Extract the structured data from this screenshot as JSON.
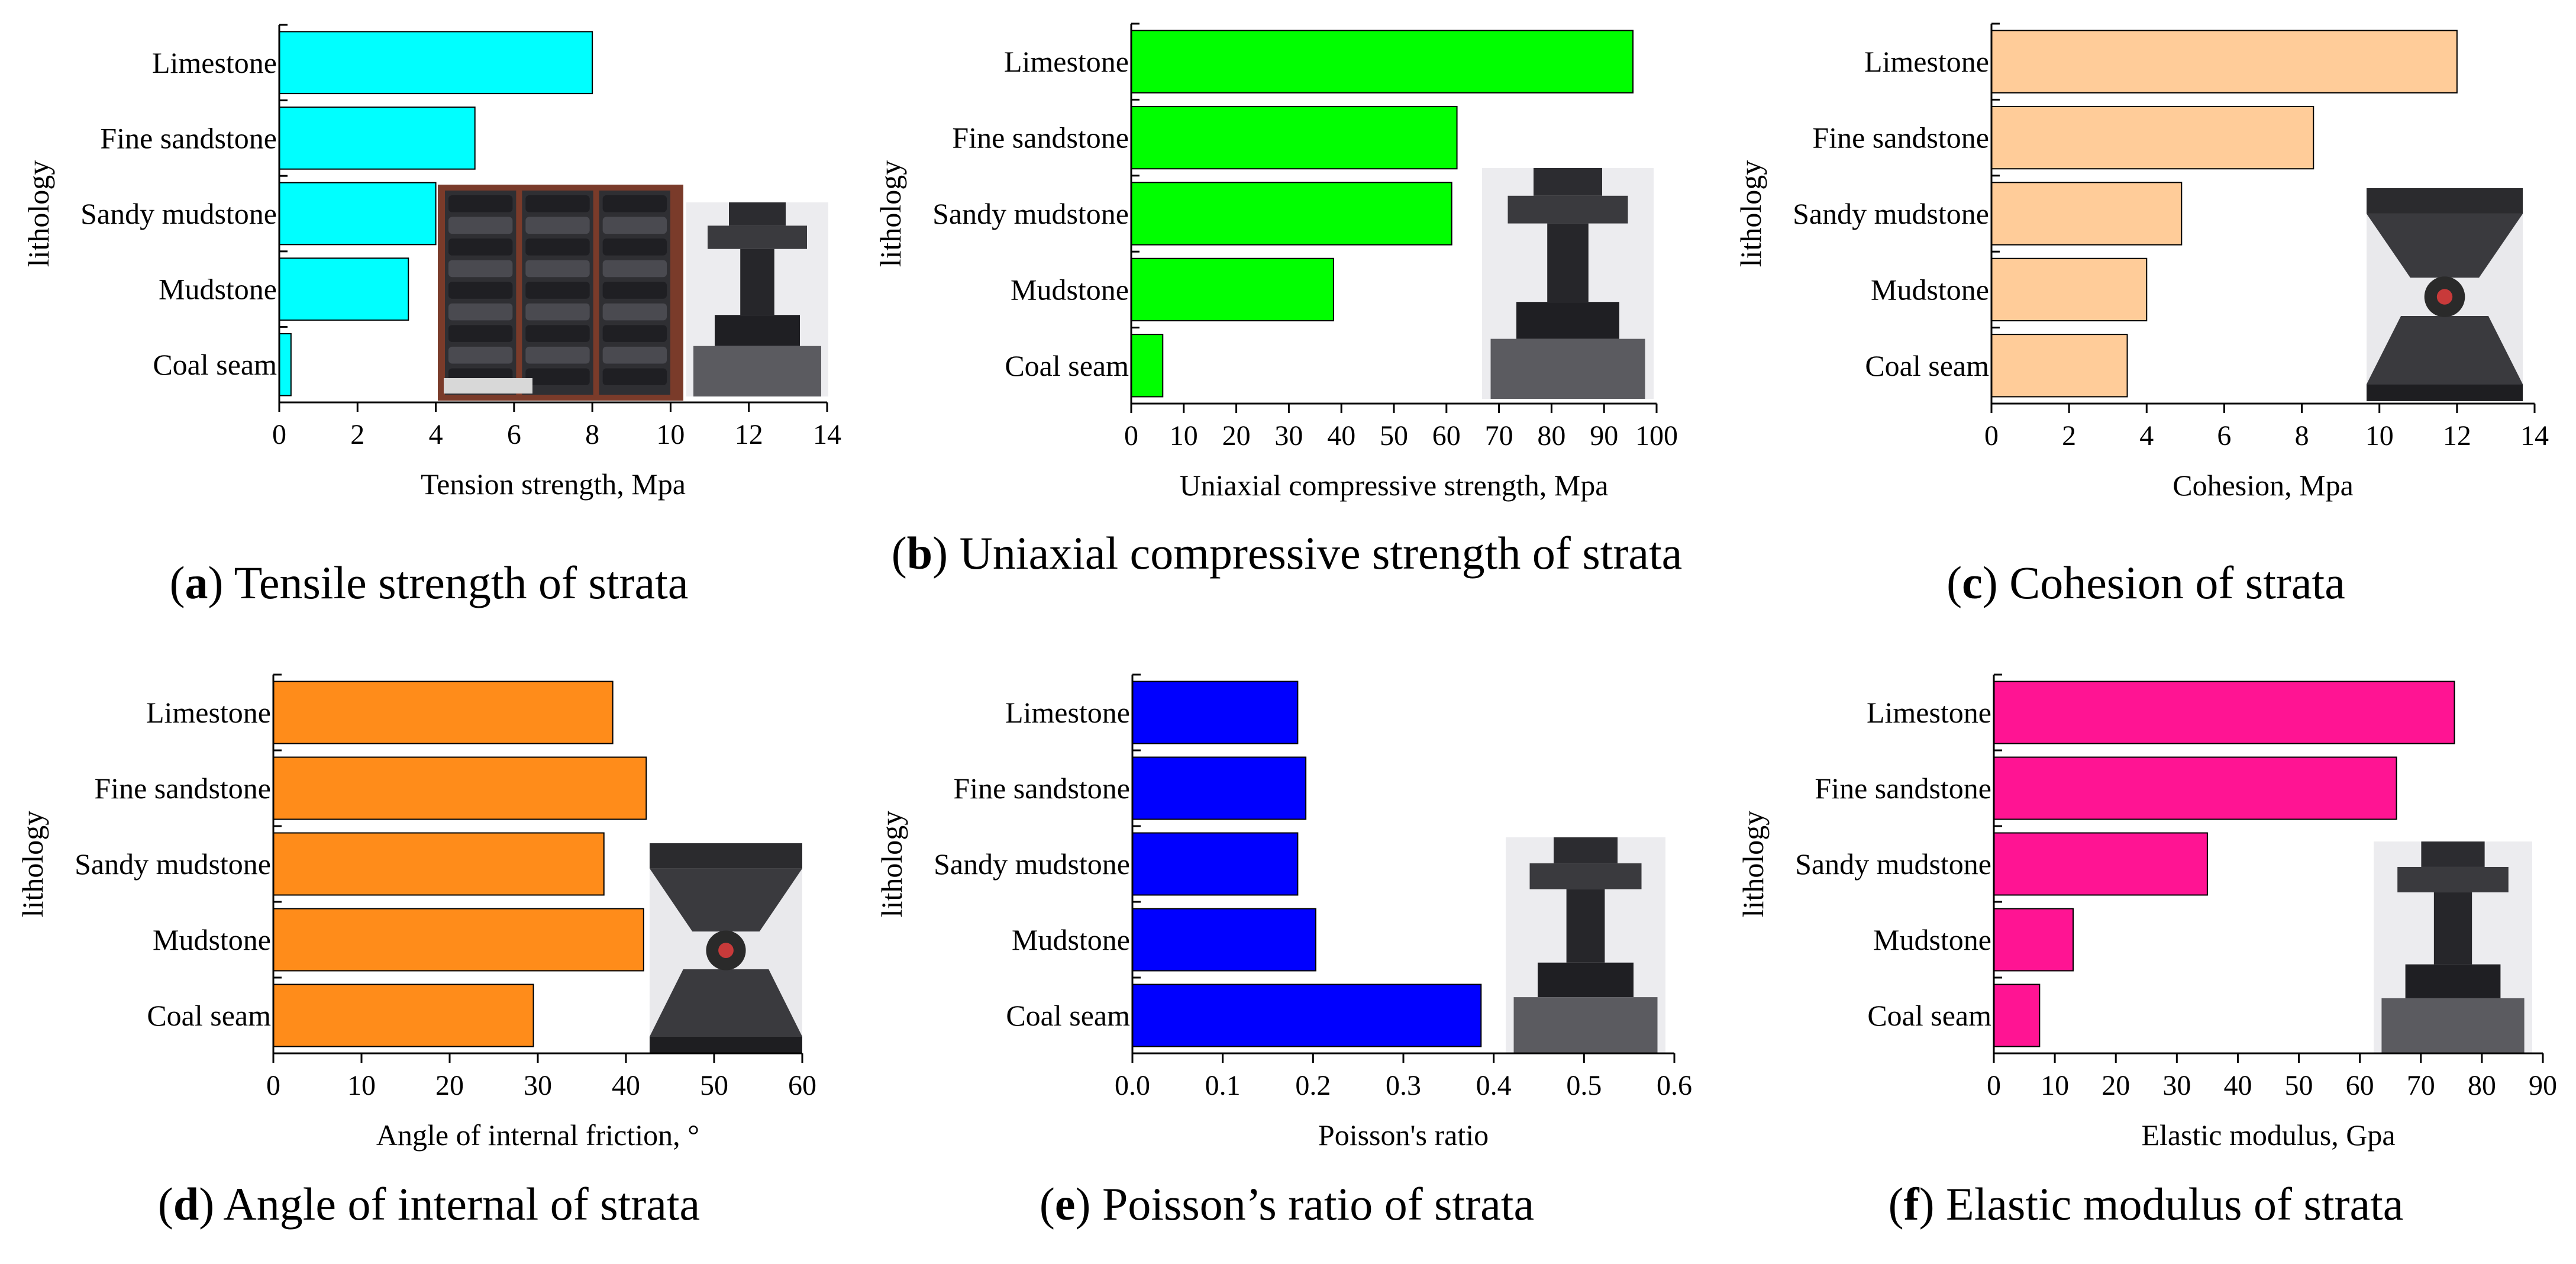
{
  "chart_data": [
    {
      "type": "bar",
      "orientation": "horizontal",
      "panel_letter": "a",
      "caption": "Tensile strength of strata",
      "xlabel": "Tension strength, Mpa",
      "ylabel": "lithology",
      "categories": [
        "Limestone",
        "Fine sandstone",
        "Sandy mudstone",
        "Mudstone",
        "Coal seam"
      ],
      "values": [
        8.0,
        5.0,
        4.0,
        3.3,
        0.3
      ],
      "xlim": [
        0,
        14
      ],
      "xticks": [
        "0",
        "2",
        "4",
        "6",
        "8",
        "10",
        "12",
        "14"
      ],
      "bar_color": "#00ffff",
      "photo": "specimen-photo"
    },
    {
      "type": "bar",
      "orientation": "horizontal",
      "panel_letter": "b",
      "caption": "Uniaxial compressive strength of strata",
      "xlabel": "Uniaxial compressive strength, Mpa",
      "ylabel": "lithology",
      "categories": [
        "Limestone",
        "Fine sandstone",
        "Sandy mudstone",
        "Mudstone",
        "Coal seam"
      ],
      "values": [
        95.5,
        62,
        61,
        38.5,
        6
      ],
      "xlim": [
        0,
        100
      ],
      "xticks": [
        "0",
        "10",
        "20",
        "30",
        "40",
        "50",
        "60",
        "70",
        "80",
        "90",
        "100"
      ],
      "bar_color": "#00ff00",
      "photo": "specimen-photo"
    },
    {
      "type": "bar",
      "orientation": "horizontal",
      "panel_letter": "c",
      "caption": "Cohesion of strata",
      "xlabel": "Cohesion, Mpa",
      "ylabel": "lithology",
      "categories": [
        "Limestone",
        "Fine sandstone",
        "Sandy mudstone",
        "Mudstone",
        "Coal seam"
      ],
      "values": [
        12.0,
        8.3,
        4.9,
        4.0,
        3.5
      ],
      "xlim": [
        0,
        14
      ],
      "xticks": [
        "0",
        "2",
        "4",
        "6",
        "8",
        "10",
        "12",
        "14"
      ],
      "bar_color": "#ffcc99",
      "photo": "specimen-photo"
    },
    {
      "type": "bar",
      "orientation": "horizontal",
      "panel_letter": "d",
      "caption": "Angle of internal of strata",
      "xlabel": "Angle of internal friction, °",
      "ylabel": "lithology",
      "categories": [
        "Limestone",
        "Fine sandstone",
        "Sandy mudstone",
        "Mudstone",
        "Coal seam"
      ],
      "values": [
        38.5,
        42.3,
        37.5,
        42,
        29.5
      ],
      "xlim": [
        0,
        60
      ],
      "xticks": [
        "0",
        "10",
        "20",
        "30",
        "40",
        "50",
        "60"
      ],
      "bar_color": "#ff8c1a",
      "photo": "specimen-photo"
    },
    {
      "type": "bar",
      "orientation": "horizontal",
      "panel_letter": "e",
      "caption": "Poisson’s ratio of strata",
      "xlabel": "Poisson's ratio",
      "ylabel": "lithology",
      "categories": [
        "Limestone",
        "Fine sandstone",
        "Sandy mudstone",
        "Mudstone",
        "Coal seam"
      ],
      "values": [
        0.183,
        0.192,
        0.183,
        0.203,
        0.386
      ],
      "xlim": [
        0,
        0.6
      ],
      "xticks": [
        "0.0",
        "0.1",
        "0.2",
        "0.3",
        "0.4",
        "0.5",
        "0.6"
      ],
      "bar_color": "#0000ff",
      "photo": "specimen-photo"
    },
    {
      "type": "bar",
      "orientation": "horizontal",
      "panel_letter": "f",
      "caption": "Elastic modulus of strata",
      "xlabel": "Elastic modulus, Gpa",
      "ylabel": "lithology",
      "categories": [
        "Limestone",
        "Fine sandstone",
        "Sandy mudstone",
        "Mudstone",
        "Coal seam"
      ],
      "values": [
        75.5,
        66,
        35,
        13,
        7.5
      ],
      "xlim": [
        0,
        90
      ],
      "xticks": [
        "0",
        "10",
        "20",
        "30",
        "40",
        "50",
        "60",
        "70",
        "80",
        "90"
      ],
      "bar_color": "#ff1493",
      "photo": "specimen-photo"
    }
  ]
}
